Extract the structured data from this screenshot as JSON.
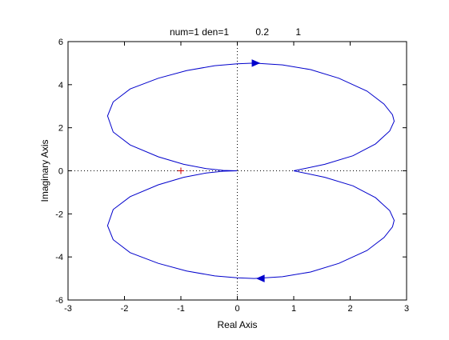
{
  "chart_data": {
    "type": "line",
    "title": "num=1 den=1          0.2          1",
    "xlabel": "Real Axis",
    "ylabel": "Imaginary Axis",
    "xlim": [
      -3,
      3
    ],
    "ylim": [
      -6,
      6
    ],
    "xticks": [
      -3,
      -2,
      -1,
      0,
      1,
      2,
      3
    ],
    "yticks": [
      -6,
      -4,
      -2,
      0,
      2,
      4,
      6
    ],
    "grid": false,
    "zero_lines": true,
    "colors": {
      "curve": "#0000cc",
      "marker": "#cc0000",
      "axes": "#000000"
    },
    "series": [
      {
        "x": [
          0.0,
          -0.25,
          -0.55,
          -0.95,
          -1.4,
          -1.9,
          -2.2,
          -2.3,
          -2.2,
          -1.9,
          -1.4,
          -0.9,
          -0.4,
          0.0,
          0.3,
          0.8,
          1.3,
          1.8,
          2.3,
          2.6,
          2.75,
          2.78,
          2.7,
          2.45,
          2.05,
          1.55,
          1.0
        ],
        "y": [
          0.0,
          0.02,
          0.1,
          0.3,
          0.65,
          1.2,
          1.8,
          2.55,
          3.2,
          3.8,
          4.3,
          4.65,
          4.88,
          4.97,
          5.0,
          4.92,
          4.7,
          4.3,
          3.7,
          3.1,
          2.6,
          2.3,
          1.85,
          1.25,
          0.7,
          0.3,
          0.0
        ]
      },
      {
        "x": [
          0.0,
          -0.25,
          -0.55,
          -0.95,
          -1.4,
          -1.9,
          -2.2,
          -2.3,
          -2.2,
          -1.9,
          -1.4,
          -0.9,
          -0.4,
          0.0,
          0.3,
          0.8,
          1.3,
          1.8,
          2.3,
          2.6,
          2.75,
          2.78,
          2.7,
          2.45,
          2.05,
          1.55,
          1.0
        ],
        "y": [
          0.0,
          -0.02,
          -0.1,
          -0.3,
          -0.65,
          -1.2,
          -1.8,
          -2.55,
          -3.2,
          -3.8,
          -4.3,
          -4.65,
          -4.88,
          -4.97,
          -5.0,
          -4.92,
          -4.7,
          -4.3,
          -3.7,
          -3.1,
          -2.6,
          -2.3,
          -1.85,
          -1.25,
          -0.7,
          -0.3,
          0.0
        ]
      }
    ],
    "arrows": [
      {
        "x": 0.32,
        "y": 5.0,
        "direction": "right"
      },
      {
        "x": 0.42,
        "y": -5.0,
        "direction": "left"
      }
    ],
    "critical_point": {
      "x": -1,
      "y": 0,
      "symbol": "+"
    }
  }
}
